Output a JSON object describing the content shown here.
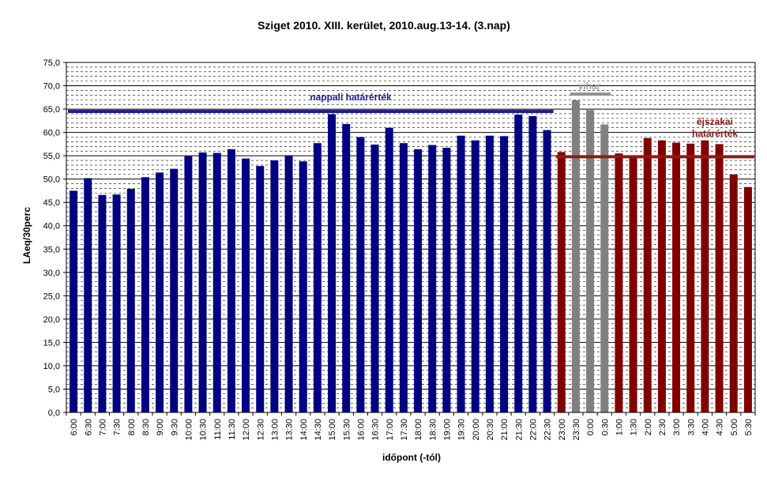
{
  "chart_data": {
    "type": "bar",
    "title": "Sziget 2010.  XIII. kerület, 2010.aug.13-14. (3.nap)",
    "xlabel": "időpont (-tól)",
    "ylabel": "LAeq/30perc",
    "ylim": [
      0,
      75
    ],
    "y_ticks": [
      "0,0",
      "5,0",
      "10,0",
      "15,0",
      "20,0",
      "25,0",
      "30,0",
      "35,0",
      "40,0",
      "45,0",
      "50,0",
      "55,0",
      "60,0",
      "65,0",
      "70,0",
      "75,0"
    ],
    "grid": true,
    "categories": [
      "6:00",
      "6:30",
      "7:00",
      "7:30",
      "8:00",
      "8:30",
      "9:00",
      "9:30",
      "10:00",
      "10:30",
      "11:00",
      "11:30",
      "12:00",
      "12:30",
      "13:00",
      "13:30",
      "14:00",
      "14:30",
      "15:00",
      "15:30",
      "16:00",
      "16:30",
      "17:00",
      "17:30",
      "18:00",
      "18:30",
      "19:00",
      "19:30",
      "20:00",
      "20:30",
      "21:00",
      "21:30",
      "22:00",
      "22:30",
      "23:00",
      "23:30",
      "0:00",
      "0:30",
      "1:00",
      "1:30",
      "2:00",
      "2:30",
      "3:00",
      "3:30",
      "4:00",
      "4:30",
      "5:00",
      "5:30"
    ],
    "values": [
      47.5,
      50.2,
      46.6,
      46.7,
      47.9,
      50.4,
      51.4,
      52.2,
      54.9,
      55.7,
      55.6,
      56.4,
      54.4,
      52.8,
      54.0,
      55.1,
      53.8,
      57.7,
      63.9,
      61.8,
      59.0,
      57.4,
      61.0,
      57.7,
      56.4,
      57.3,
      56.7,
      59.3,
      58.3,
      59.3,
      59.2,
      63.8,
      63.5,
      60.5,
      55.8,
      66.9,
      64.8,
      61.7,
      55.5,
      54.5,
      58.8,
      58.3,
      57.8,
      57.6,
      58.3,
      57.5,
      51.0,
      48.3
    ],
    "bar_colors": [
      "#000080",
      "#000080",
      "#000080",
      "#000080",
      "#000080",
      "#000080",
      "#000080",
      "#000080",
      "#000080",
      "#000080",
      "#000080",
      "#000080",
      "#000080",
      "#000080",
      "#000080",
      "#000080",
      "#000080",
      "#000080",
      "#000080",
      "#000080",
      "#000080",
      "#000080",
      "#000080",
      "#000080",
      "#000080",
      "#000080",
      "#000080",
      "#000080",
      "#000080",
      "#000080",
      "#000080",
      "#000080",
      "#000080",
      "#000080",
      "#800000",
      "#808080",
      "#808080",
      "#808080",
      "#800000",
      "#800000",
      "#800000",
      "#800000",
      "#800000",
      "#800000",
      "#800000",
      "#800000",
      "#800000",
      "#800000"
    ],
    "reference_lines": [
      {
        "label": "nappali határérték",
        "value": 64.5,
        "from_index": 0,
        "to_index": 33,
        "color": "#1f1f8f"
      },
      {
        "label": "vihar",
        "value": 68.2,
        "from_index": 35,
        "to_index": 37,
        "color": "#909090"
      },
      {
        "label_lines": [
          "éjszakai",
          "határérték"
        ],
        "value": 54.8,
        "from_index": 34,
        "to_index": 47,
        "color": "#8b1a1a"
      }
    ]
  }
}
